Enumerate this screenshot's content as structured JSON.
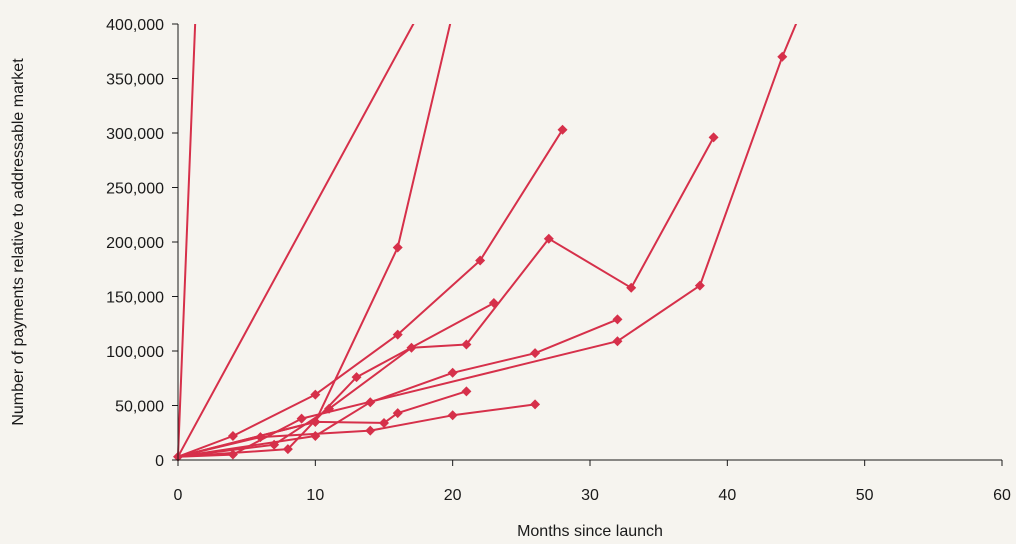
{
  "chart_data": {
    "type": "line",
    "title": "",
    "xlabel": "Months since launch",
    "ylabel": "Number of payments relative to addressable market",
    "xlim": [
      0,
      60
    ],
    "ylim": [
      0,
      400000
    ],
    "x_ticks": [
      0,
      10,
      20,
      30,
      40,
      50,
      60
    ],
    "y_ticks": [
      0,
      50000,
      100000,
      150000,
      200000,
      250000,
      300000,
      350000,
      400000
    ],
    "x_tick_labels": [
      "0",
      "10",
      "20",
      "30",
      "40",
      "50",
      "60"
    ],
    "y_tick_labels": [
      "0",
      "50,000",
      "100,000",
      "150,000",
      "200,000",
      "250,000",
      "300,000",
      "350,000",
      "400,000"
    ],
    "grid": false,
    "legend": "none",
    "series_color": "#d6304a",
    "series": [
      {
        "points": [
          [
            0,
            3000
          ],
          [
            1.5,
            480000
          ]
        ],
        "markers": false
      },
      {
        "points": [
          [
            0,
            3000
          ],
          [
            18,
            420000
          ]
        ],
        "markers": false
      },
      {
        "points": [
          [
            0,
            3000
          ],
          [
            10,
            35000
          ],
          [
            16,
            195000
          ],
          [
            20,
            410000
          ]
        ],
        "markers": true
      },
      {
        "points": [
          [
            0,
            3000
          ],
          [
            4,
            22000
          ],
          [
            10,
            60000
          ],
          [
            16,
            115000
          ],
          [
            22,
            183000
          ],
          [
            28,
            303000
          ]
        ],
        "markers": true
      },
      {
        "points": [
          [
            0,
            3000
          ],
          [
            7,
            14000
          ],
          [
            11,
            47000
          ],
          [
            17,
            103000
          ],
          [
            21,
            106000
          ],
          [
            27,
            203000
          ],
          [
            33,
            158000
          ],
          [
            39,
            296000
          ]
        ],
        "markers": true
      },
      {
        "points": [
          [
            0,
            3000
          ],
          [
            8,
            10000
          ],
          [
            13,
            76000
          ],
          [
            23,
            144000
          ]
        ],
        "markers": true
      },
      {
        "points": [
          [
            0,
            3000
          ],
          [
            10,
            22000
          ],
          [
            14,
            53000
          ],
          [
            20,
            80000
          ],
          [
            26,
            98000
          ],
          [
            32,
            129000
          ]
        ],
        "markers": true
      },
      {
        "points": [
          [
            0,
            3000
          ],
          [
            4,
            5000
          ],
          [
            9,
            38000
          ],
          [
            32,
            109000
          ],
          [
            38,
            160000
          ],
          [
            44,
            370000
          ],
          [
            46,
            430000
          ]
        ],
        "markers": true
      },
      {
        "points": [
          [
            0,
            3000
          ],
          [
            6,
            21000
          ],
          [
            14,
            27000
          ],
          [
            20,
            41000
          ],
          [
            26,
            51000
          ]
        ],
        "markers": true
      },
      {
        "points": [
          [
            0,
            3000
          ],
          [
            10,
            35000
          ],
          [
            15,
            34000
          ],
          [
            16,
            43000
          ],
          [
            21,
            63000
          ]
        ],
        "markers": true
      }
    ]
  }
}
